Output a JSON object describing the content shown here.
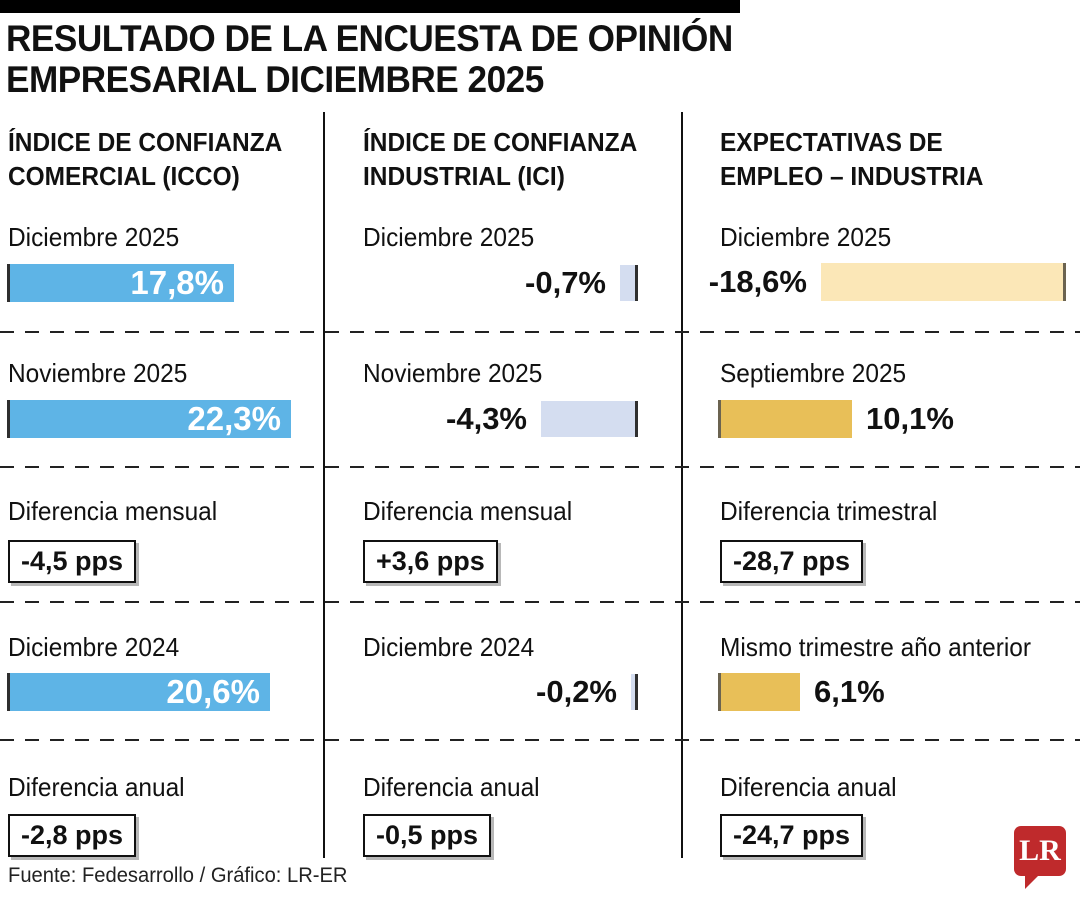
{
  "title": {
    "line1": "RESULTADO DE LA ENCUESTA DE OPINIÓN",
    "line2": "EMPRESARIAL DICIEMBRE 2025"
  },
  "footer": {
    "source": "Fuente: Fedesarrollo / Gráfico: LR-ER"
  },
  "logo": {
    "text": "LR",
    "color": "#bf2a2c"
  },
  "palette": {
    "blue": "#5eb4e6",
    "lavender": "#d4ddf0",
    "pale_yellow": "#fbe7b7",
    "gold": "#e8bf58",
    "logo_red": "#bf2a2c"
  },
  "columns": [
    {
      "header": [
        "ÍNDICE DE CONFIANZA",
        "COMERCIAL (ICCO)"
      ],
      "rows": [
        {
          "kind": "bar",
          "label": "Diciembre 2025",
          "value": 17.8,
          "display": "17,8%",
          "color": "#5eb4e6"
        },
        {
          "kind": "bar",
          "label": "Noviembre 2025",
          "value": 22.3,
          "display": "22,3%",
          "color": "#5eb4e6"
        },
        {
          "kind": "box",
          "label": "Diferencia mensual",
          "display": "-4,5 pps"
        },
        {
          "kind": "bar",
          "label": "Diciembre 2024",
          "value": 20.6,
          "display": "20,6%",
          "color": "#5eb4e6"
        },
        {
          "kind": "box",
          "label": "Diferencia anual",
          "display": "-2,8 pps"
        }
      ]
    },
    {
      "header": [
        "ÍNDICE DE CONFIANZA",
        "INDUSTRIAL (ICI)"
      ],
      "rows": [
        {
          "kind": "bar",
          "label": "Diciembre 2025",
          "value": -0.7,
          "display": "-0,7%",
          "color": "#d4ddf0"
        },
        {
          "kind": "bar",
          "label": "Noviembre 2025",
          "value": -4.3,
          "display": "-4,3%",
          "color": "#d4ddf0"
        },
        {
          "kind": "box",
          "label": "Diferencia mensual",
          "display": "+3,6 pps"
        },
        {
          "kind": "bar",
          "label": "Diciembre 2024",
          "value": -0.2,
          "display": "-0,2%",
          "color": "#d4ddf0"
        },
        {
          "kind": "box",
          "label": "Diferencia anual",
          "display": "-0,5 pps"
        }
      ]
    },
    {
      "header": [
        "EXPECTATIVAS DE",
        "EMPLEO – INDUSTRIA"
      ],
      "rows": [
        {
          "kind": "bar",
          "label": "Diciembre 2025",
          "value": -18.6,
          "display": "-18,6%",
          "color": "#fbe7b7"
        },
        {
          "kind": "bar",
          "label": "Septiembre 2025",
          "value": 10.1,
          "display": "10,1%",
          "color": "#e8bf58"
        },
        {
          "kind": "box",
          "label": "Diferencia trimestral",
          "display": "-28,7 pps"
        },
        {
          "kind": "bar",
          "label": "Mismo trimestre año anterior",
          "value": 6.1,
          "display": "6,1%",
          "color": "#e8bf58"
        },
        {
          "kind": "box",
          "label": "Diferencia anual",
          "display": "-24,7 pps"
        }
      ]
    }
  ],
  "chart_data": [
    {
      "type": "bar",
      "orientation": "horizontal",
      "title": "Índice de Confianza Comercial (ICCO)",
      "unit": "%",
      "categories": [
        "Diciembre 2025",
        "Noviembre 2025",
        "Diciembre 2024"
      ],
      "values": [
        17.8,
        22.3,
        20.6
      ],
      "value_labels": [
        "17,8%",
        "22,3%",
        "20,6%"
      ],
      "bar_color": "#5eb4e6",
      "differences": [
        {
          "label": "Diferencia mensual",
          "value_pps": -4.5,
          "display": "-4,5 pps"
        },
        {
          "label": "Diferencia anual",
          "value_pps": -2.8,
          "display": "-2,8 pps"
        }
      ]
    },
    {
      "type": "bar",
      "orientation": "horizontal",
      "title": "Índice de Confianza Industrial (ICI)",
      "unit": "%",
      "categories": [
        "Diciembre 2025",
        "Noviembre 2025",
        "Diciembre 2024"
      ],
      "values": [
        -0.7,
        -4.3,
        -0.2
      ],
      "value_labels": [
        "-0,7%",
        "-4,3%",
        "-0,2%"
      ],
      "bar_color": "#d4ddf0",
      "differences": [
        {
          "label": "Diferencia mensual",
          "value_pps": 3.6,
          "display": "+3,6 pps"
        },
        {
          "label": "Diferencia anual",
          "value_pps": -0.5,
          "display": "-0,5 pps"
        }
      ]
    },
    {
      "type": "bar",
      "orientation": "horizontal",
      "title": "Expectativas de Empleo – Industria",
      "unit": "%",
      "categories": [
        "Diciembre 2025",
        "Septiembre 2025",
        "Mismo trimestre año anterior"
      ],
      "values": [
        -18.6,
        10.1,
        6.1
      ],
      "value_labels": [
        "-18,6%",
        "10,1%",
        "6,1%"
      ],
      "bar_color_negative": "#fbe7b7",
      "bar_color_positive": "#e8bf58",
      "differences": [
        {
          "label": "Diferencia trimestral",
          "value_pps": -28.7,
          "display": "-28,7 pps"
        },
        {
          "label": "Diferencia anual",
          "value_pps": -24.7,
          "display": "-24,7 pps"
        }
      ]
    }
  ]
}
